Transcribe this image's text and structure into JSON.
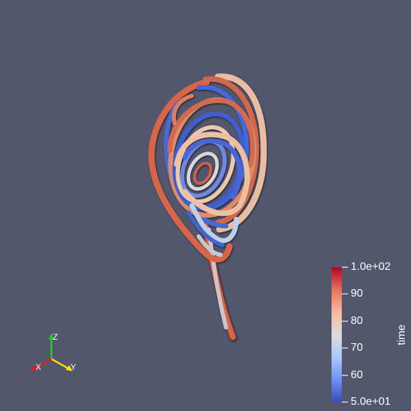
{
  "viewport": {
    "background": "#52576e"
  },
  "scalar_bar": {
    "title": "time",
    "range": [
      50,
      100
    ],
    "labels": [
      "1.0e+02",
      "90",
      "80",
      "70",
      "60",
      "5.0e+01"
    ],
    "colormap": [
      "#3b4cc0",
      "#6f92f3",
      "#aac7fd",
      "#dddcdc",
      "#f7b89c",
      "#e7745b",
      "#b40426"
    ]
  },
  "orientation_axes": {
    "x_label": "X",
    "y_label": "Y",
    "z_label": "Z",
    "x_color": "#e0201e",
    "y_color": "#f5e600",
    "z_color": "#1fd11f"
  }
}
